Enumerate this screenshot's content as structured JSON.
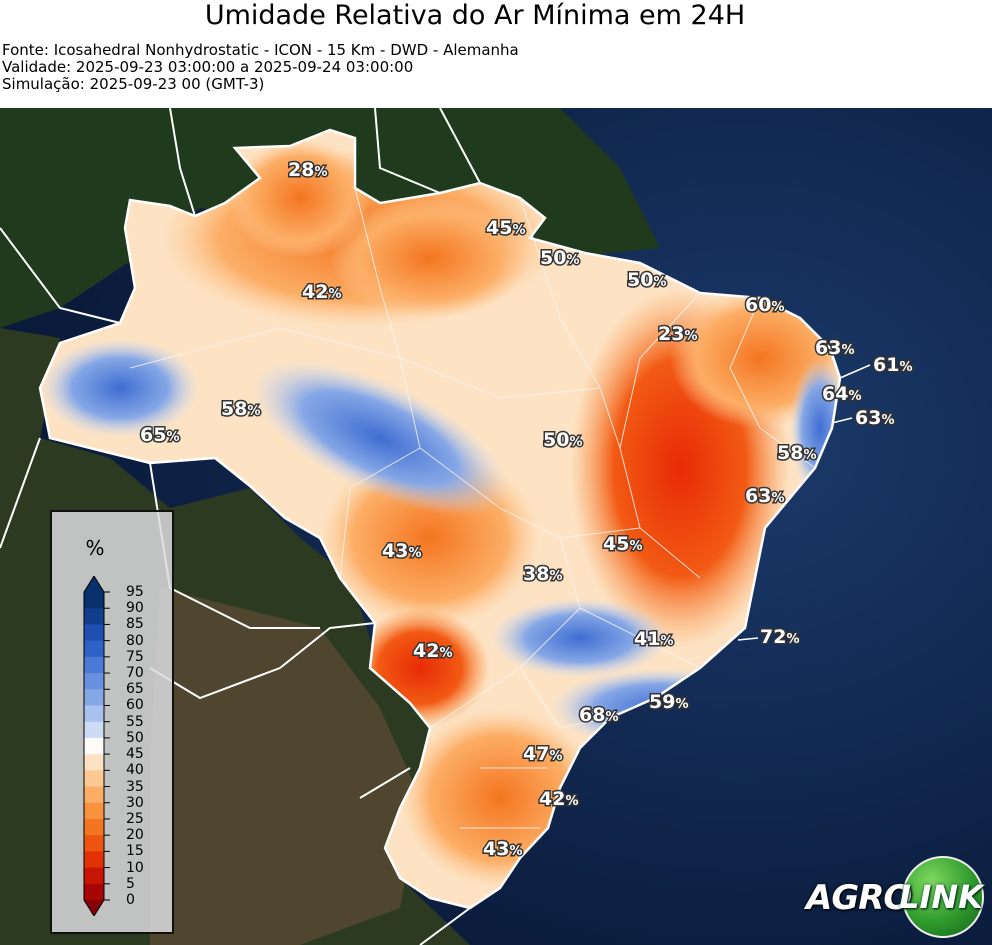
{
  "header": {
    "title": "Umidade Relativa do Ar Mínima em 24H",
    "source": "Fonte: Icosahedral Nonhydrostatic - ICON - 15 Km - DWD - Alemanha",
    "validity": "Validade: 2025-09-23 03:00:00 a 2025-09-24 03:00:00",
    "simulation": "Simulação: 2025-09-23 00 (GMT-3)"
  },
  "legend": {
    "unit": "%",
    "ticks": [
      "95",
      "90",
      "85",
      "80",
      "75",
      "70",
      "65",
      "60",
      "55",
      "50",
      "45",
      "40",
      "35",
      "30",
      "25",
      "20",
      "15",
      "10",
      "5",
      "0"
    ],
    "colors": [
      "#08306b",
      "#123c8c",
      "#1f4fb0",
      "#2f62c8",
      "#4a79d6",
      "#6790de",
      "#86a7e6",
      "#a9c1ee",
      "#cddbf5",
      "#fbfbf9",
      "#fde3c4",
      "#fdc993",
      "#fcae66",
      "#f9923f",
      "#f47520",
      "#ec5410",
      "#e23105",
      "#c81402",
      "#a80604",
      "#860208"
    ]
  },
  "labels": [
    {
      "value": "28",
      "unit": "%"
    },
    {
      "value": "45",
      "unit": "%"
    },
    {
      "value": "50",
      "unit": "%"
    },
    {
      "value": "50",
      "unit": "%"
    },
    {
      "value": "42",
      "unit": "%"
    },
    {
      "value": "60",
      "unit": "%"
    },
    {
      "value": "23",
      "unit": "%"
    },
    {
      "value": "63",
      "unit": "%"
    },
    {
      "value": "61",
      "unit": "%"
    },
    {
      "value": "64",
      "unit": "%"
    },
    {
      "value": "63",
      "unit": "%"
    },
    {
      "value": "58",
      "unit": "%"
    },
    {
      "value": "65",
      "unit": "%"
    },
    {
      "value": "50",
      "unit": "%"
    },
    {
      "value": "58",
      "unit": "%"
    },
    {
      "value": "63",
      "unit": "%"
    },
    {
      "value": "43",
      "unit": "%"
    },
    {
      "value": "45",
      "unit": "%"
    },
    {
      "value": "38",
      "unit": "%"
    },
    {
      "value": "42",
      "unit": "%"
    },
    {
      "value": "41",
      "unit": "%"
    },
    {
      "value": "72",
      "unit": "%"
    },
    {
      "value": "68",
      "unit": "%"
    },
    {
      "value": "59",
      "unit": "%"
    },
    {
      "value": "47",
      "unit": "%"
    },
    {
      "value": "42",
      "unit": "%"
    },
    {
      "value": "43",
      "unit": "%"
    }
  ],
  "logo": {
    "part1": "AGRO",
    "part2": "LINK"
  }
}
